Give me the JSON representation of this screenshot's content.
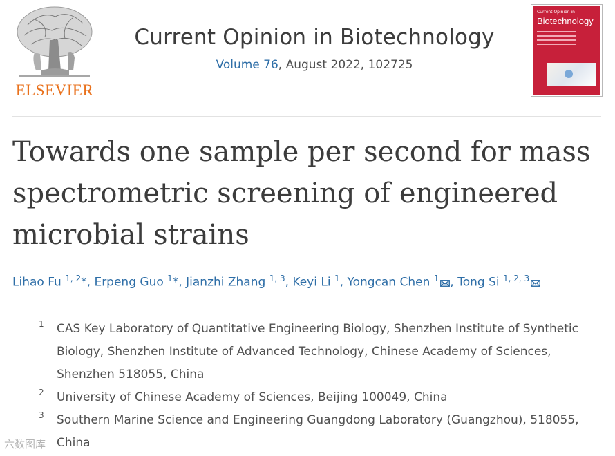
{
  "publisher": {
    "wordmark": "ELSEVIER",
    "brand_color": "#e9711c"
  },
  "journal": {
    "title": "Current Opinion in Biotechnology",
    "volume": "Volume 76",
    "issue_rest": ", August 2022, 102725",
    "link_color": "#2e6ea7"
  },
  "cover": {
    "top_text": "Current Opinion in",
    "name": "Biotechnology",
    "color": "#c7203a"
  },
  "article": {
    "title": "Towards one sample per second for mass spectrometric screening of engineered microbial strains"
  },
  "authors": [
    {
      "name": "Lihao Fu",
      "sup": "1, 2",
      "mark": "*",
      "email": false
    },
    {
      "name": "Erpeng Guo",
      "sup": "1",
      "mark": "*",
      "email": false
    },
    {
      "name": "Jianzhi Zhang",
      "sup": "1, 3",
      "mark": "",
      "email": false
    },
    {
      "name": "Keyi Li",
      "sup": "1",
      "mark": "",
      "email": false
    },
    {
      "name": "Yongcan Chen",
      "sup": "1",
      "mark": "",
      "email": true
    },
    {
      "name": "Tong Si",
      "sup": "1, 2, 3",
      "mark": "",
      "email": true
    }
  ],
  "affiliations": [
    {
      "num": "1",
      "text": "CAS Key Laboratory of Quantitative Engineering Biology, Shenzhen Institute of Synthetic Biology, Shenzhen Institute of Advanced Technology, Chinese Academy of Sciences, Shenzhen 518055, China"
    },
    {
      "num": "2",
      "text": "University of Chinese Academy of Sciences, Beijing 100049, China"
    },
    {
      "num": "3",
      "text": "Southern Marine Science and Engineering Guangdong Laboratory (Guangzhou), 518055, China"
    }
  ],
  "watermark": "六数图库"
}
